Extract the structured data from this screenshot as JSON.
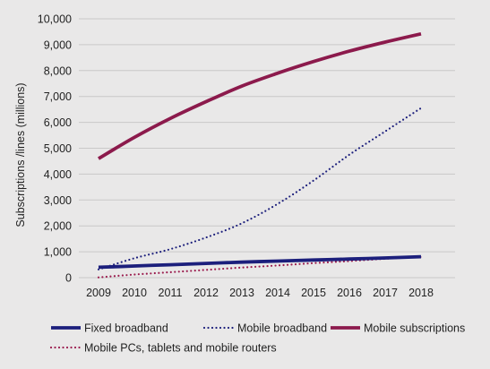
{
  "chart_data": {
    "type": "line",
    "title": "",
    "ylabel": "Subscriptions /lines (millions)",
    "xlabel": "",
    "ylim": [
      0,
      10000
    ],
    "yticks": [
      "0",
      "1,000",
      "2,000",
      "3,000",
      "4,000",
      "5,000",
      "6,000",
      "7,000",
      "8,000",
      "9,000",
      "10,000"
    ],
    "categories": [
      "2009",
      "2010",
      "2011",
      "2012",
      "2013",
      "2014",
      "2015",
      "2016",
      "2017",
      "2018"
    ],
    "grid": true,
    "legend_position": "bottom",
    "series": [
      {
        "name": "Fixed broadband",
        "color": "#1c1f7c",
        "style": "solid",
        "values": [
          400,
          450,
          500,
          550,
          600,
          640,
          680,
          720,
          760,
          810
        ]
      },
      {
        "name": "Mobile broadband",
        "color": "#1c1f7c",
        "style": "dotted",
        "values": [
          320,
          750,
          1100,
          1550,
          2100,
          2850,
          3750,
          4750,
          5650,
          6550
        ]
      },
      {
        "name": "Mobile subscriptions",
        "color": "#8c1a4c",
        "style": "solid",
        "values": [
          4600,
          5420,
          6150,
          6800,
          7400,
          7900,
          8350,
          8750,
          9100,
          9420
        ]
      },
      {
        "name": "Mobile PCs, tablets and mobile routers",
        "color": "#9b1c4e",
        "style": "dotted",
        "values": [
          10,
          120,
          210,
          300,
          390,
          470,
          560,
          640,
          730,
          800
        ]
      }
    ]
  }
}
